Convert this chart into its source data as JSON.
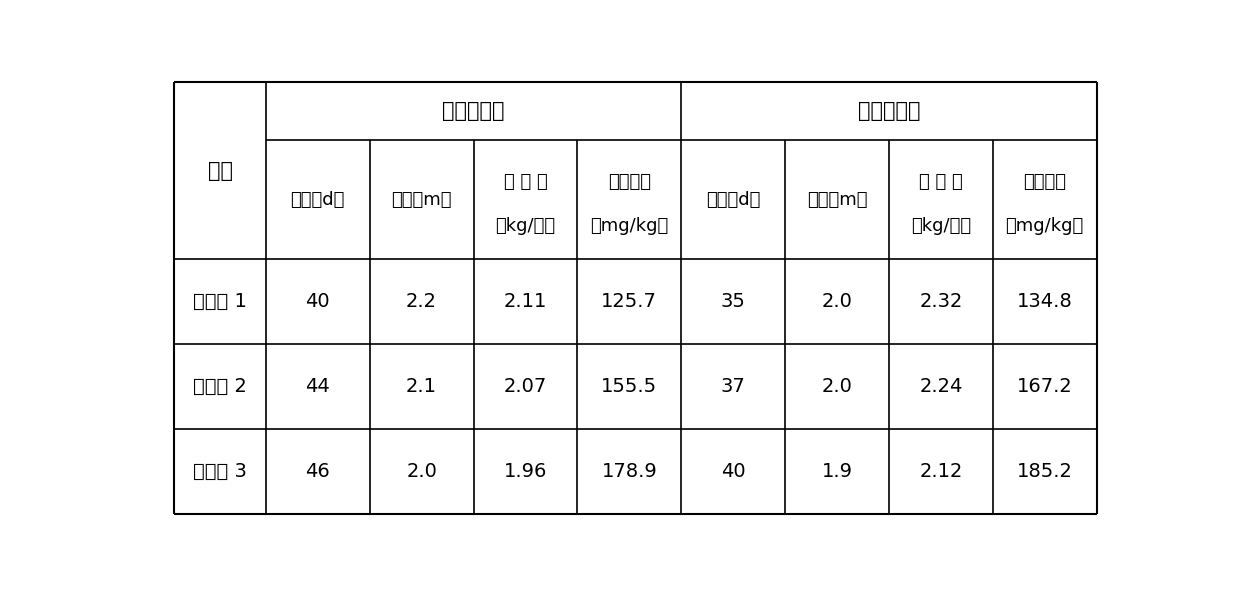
{
  "col_group1": "第一次刈割",
  "col_group2": "第二次刈割",
  "row_header": "组别",
  "sub_headers_line1": [
    "时间（d）",
    "株高（m）",
    "生 物 量",
    "镉吸附量",
    "时间（d）",
    "株高（m）",
    "生 物 量",
    "镉吸附量"
  ],
  "sub_headers_line2": [
    "",
    "",
    "（kg/株）",
    "（mg/kg）",
    "",
    "",
    "（kg/株）",
    "（mg/kg）"
  ],
  "row_labels": [
    "实施例 1",
    "实施例 2",
    "实施例 3"
  ],
  "data": [
    [
      "40",
      "2.2",
      "2.11",
      "125.7",
      "35",
      "2.0",
      "2.32",
      "134.8"
    ],
    [
      "44",
      "2.1",
      "2.07",
      "155.5",
      "37",
      "2.0",
      "2.24",
      "167.2"
    ],
    [
      "46",
      "2.0",
      "1.96",
      "178.9",
      "40",
      "1.9",
      "2.12",
      "185.2"
    ]
  ],
  "bg_color": "#ffffff",
  "line_color": "#000000",
  "text_color": "#000000",
  "font_size": 14,
  "header_font_size": 15
}
